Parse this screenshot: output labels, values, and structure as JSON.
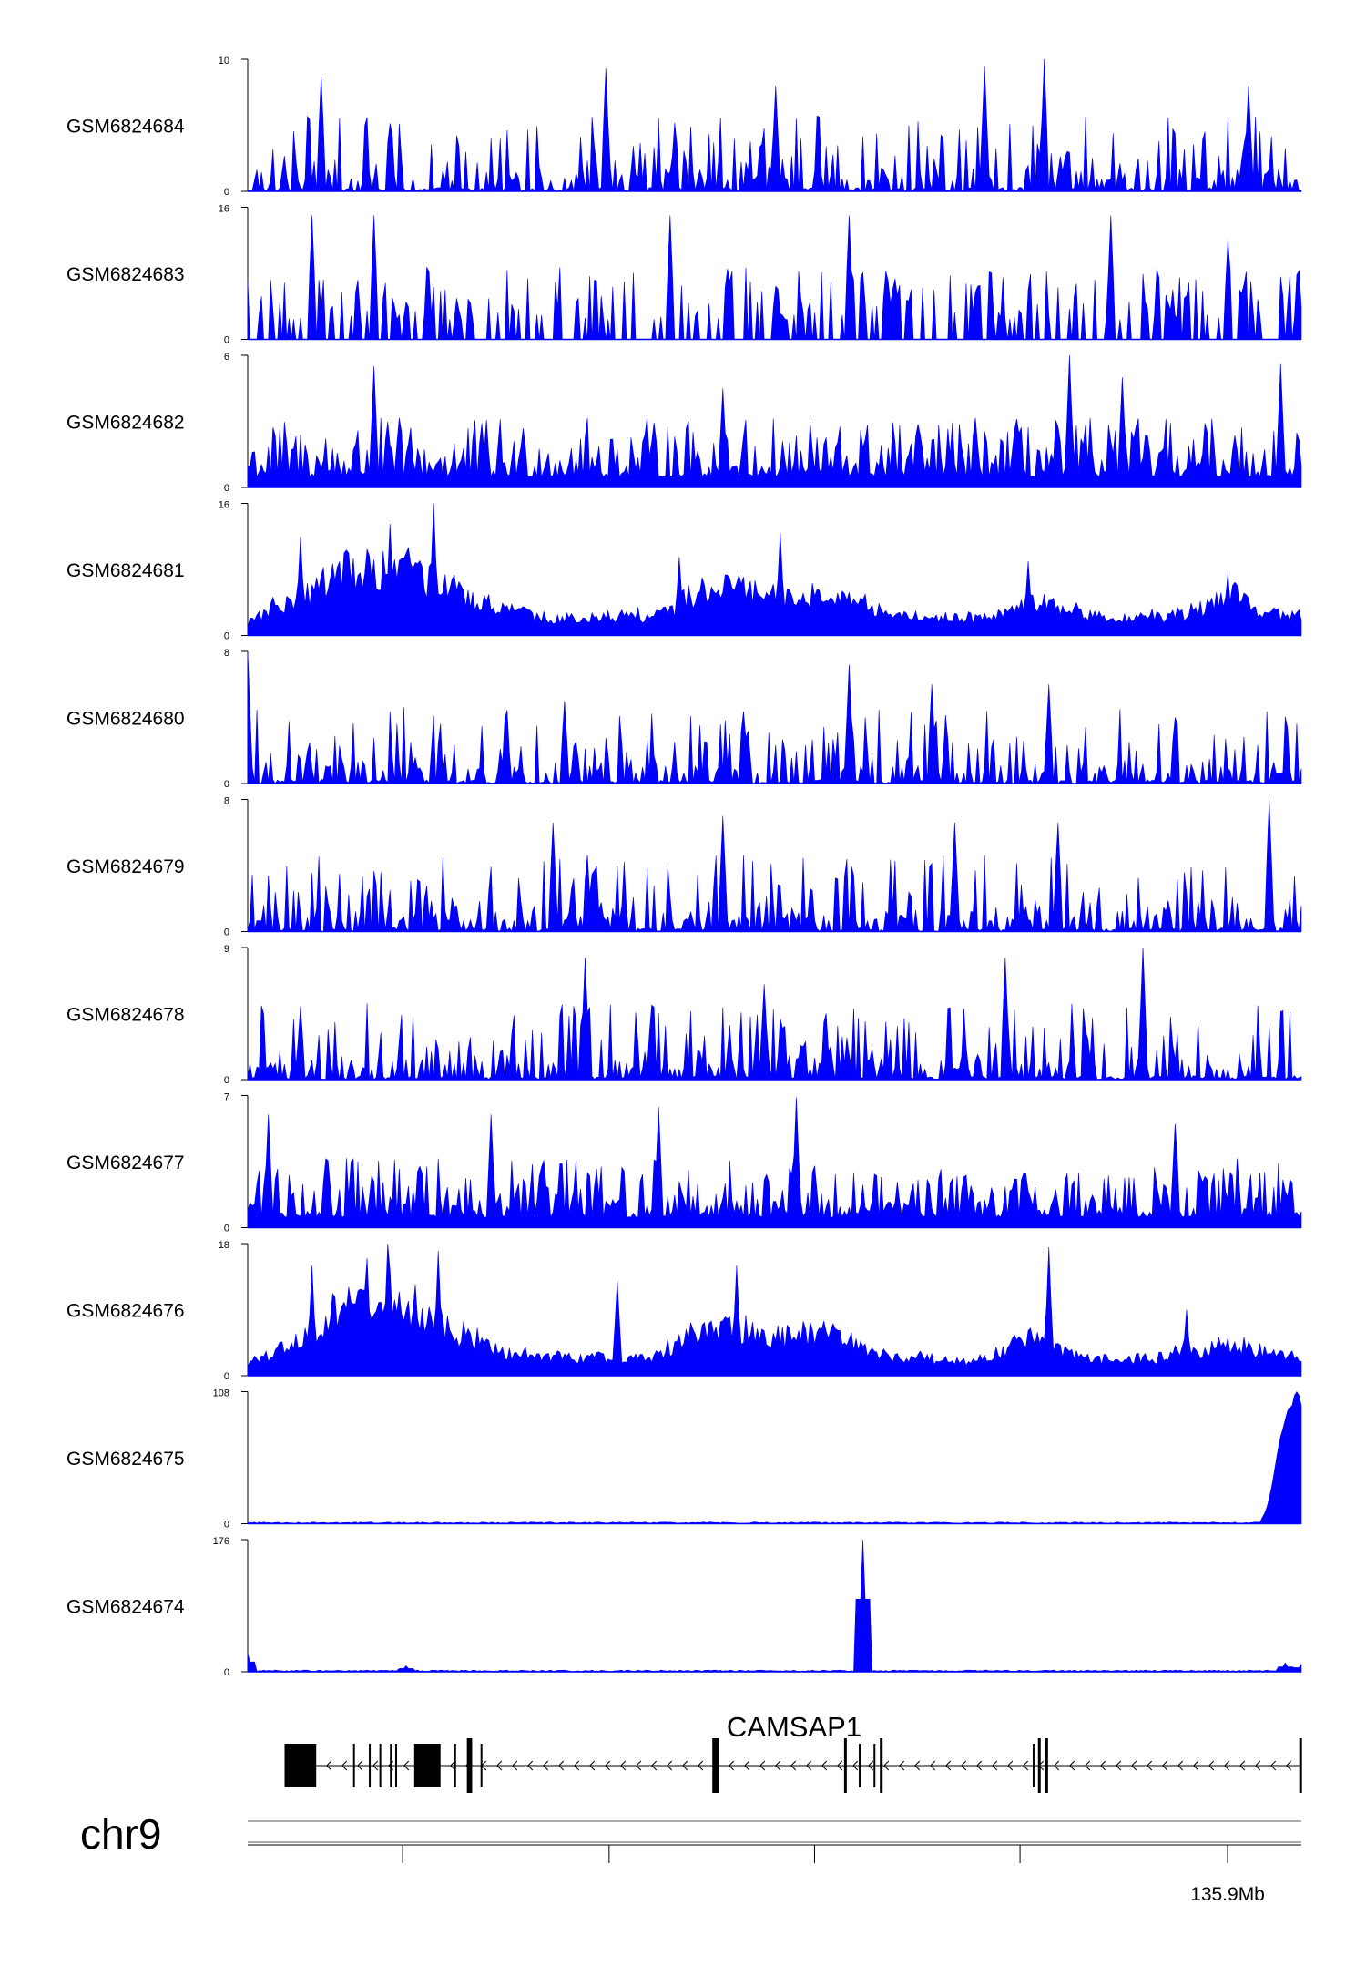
{
  "colors": {
    "signal": "#0000ff",
    "gene": "#000000",
    "axis": "#000000"
  },
  "chart_data": {
    "type": "area",
    "note_strand": "minus",
    "tracks": [
      {
        "name": "GSM6824684",
        "max": 10,
        "style": "spiky",
        "peaks": [
          [
            0.34,
            9.3
          ],
          [
            0.7,
            9.5
          ],
          [
            0.755,
            10
          ],
          [
            0.07,
            8.7
          ],
          [
            0.5,
            8.0
          ],
          [
            0.95,
            8.0
          ]
        ]
      },
      {
        "name": "GSM6824683",
        "max": 16,
        "style": "gappy",
        "peaks": [
          [
            0.06,
            15.0
          ],
          [
            0.12,
            15.0
          ],
          [
            0.4,
            15.0
          ],
          [
            0.57,
            15.0
          ],
          [
            0.82,
            15.0
          ],
          [
            0.93,
            12.0
          ]
        ]
      },
      {
        "name": "GSM6824682",
        "max": 6,
        "style": "dense",
        "peaks": [
          [
            0.12,
            5.5
          ],
          [
            0.45,
            4.5
          ],
          [
            0.78,
            6.0
          ],
          [
            0.98,
            5.6
          ],
          [
            0.83,
            5.0
          ]
        ]
      },
      {
        "name": "GSM6824681",
        "max": 16,
        "style": "broad",
        "peaks": [
          [
            0.176,
            16
          ],
          [
            0.135,
            13.5
          ],
          [
            0.05,
            12.0
          ],
          [
            0.505,
            12.5
          ],
          [
            0.41,
            9.5
          ],
          [
            0.74,
            9.0
          ],
          [
            0.93,
            7.5
          ]
        ]
      },
      {
        "name": "GSM6824680",
        "max": 8,
        "style": "spiky",
        "peaks": [
          [
            0.0,
            8.0
          ],
          [
            0.57,
            7.2
          ],
          [
            0.76,
            6.0
          ],
          [
            0.65,
            6.0
          ],
          [
            0.3,
            5.0
          ]
        ]
      },
      {
        "name": "GSM6824679",
        "max": 8,
        "style": "spiky",
        "peaks": [
          [
            0.29,
            6.6
          ],
          [
            0.45,
            7.0
          ],
          [
            0.67,
            6.6
          ],
          [
            0.97,
            8.0
          ],
          [
            0.77,
            6.6
          ]
        ]
      },
      {
        "name": "GSM6824678",
        "max": 9,
        "style": "spiky",
        "peaks": [
          [
            0.32,
            8.3
          ],
          [
            0.72,
            8.3
          ],
          [
            0.85,
            9.0
          ],
          [
            0.49,
            6.5
          ],
          [
            0.05,
            5.0
          ]
        ]
      },
      {
        "name": "GSM6824677",
        "max": 7,
        "style": "dense",
        "peaks": [
          [
            0.39,
            6.4
          ],
          [
            0.52,
            6.9
          ],
          [
            0.02,
            6.0
          ],
          [
            0.23,
            6.0
          ],
          [
            0.88,
            5.5
          ]
        ]
      },
      {
        "name": "GSM6824676",
        "max": 18,
        "style": "broad",
        "peaks": [
          [
            0.132,
            18
          ],
          [
            0.114,
            16.0
          ],
          [
            0.06,
            15.0
          ],
          [
            0.18,
            17.0
          ],
          [
            0.464,
            15.0
          ],
          [
            0.761,
            17.5
          ],
          [
            0.35,
            13.0
          ],
          [
            0.89,
            9.0
          ]
        ]
      },
      {
        "name": "GSM6824675",
        "max": 108,
        "style": "end-spike",
        "peaks": [
          [
            0.995,
            108
          ],
          [
            0.99,
            95
          ],
          [
            0.985,
            80
          ]
        ]
      },
      {
        "name": "GSM6824674",
        "max": 176,
        "style": "one-spike",
        "peaks": [
          [
            0.583,
            176
          ],
          [
            0.001,
            24
          ],
          [
            0.985,
            12
          ],
          [
            0.999,
            10
          ],
          [
            0.15,
            8
          ]
        ]
      }
    ],
    "gene": {
      "name": "CAMSAP1",
      "exons": [
        [
          0.035,
          0.065
        ],
        [
          0.158,
          0.183
        ],
        [
          0.208,
          0.213
        ],
        [
          0.441,
          0.447
        ],
        [
          0.566,
          0.567
        ],
        [
          0.6,
          0.601
        ],
        [
          0.75,
          0.752
        ],
        [
          0.757,
          0.759
        ],
        [
          0.998,
          1.0
        ]
      ],
      "thin_marks": [
        0.1,
        0.115,
        0.125,
        0.135,
        0.14,
        0.196,
        0.221,
        0.58,
        0.594,
        0.745
      ]
    },
    "axis": {
      "chromosome": "chr9",
      "tick_label": "135.9Mb",
      "tick_positions": [
        0.147,
        0.343,
        0.538,
        0.733,
        0.93
      ],
      "labelled_tick": 4
    }
  }
}
